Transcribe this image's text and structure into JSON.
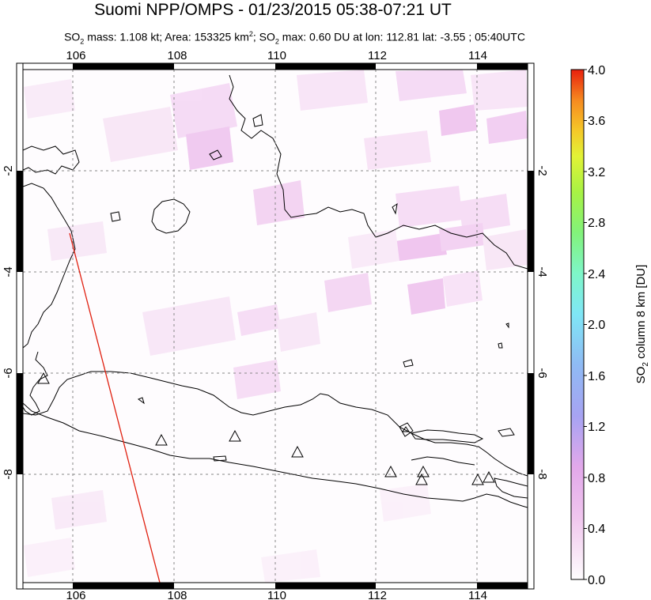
{
  "title": "Suomi NPP/OMPS - 01/23/2015 05:38-07:21 UT",
  "subtitle": {
    "p1": "SO",
    "s1": "2",
    "p2": " mass: 1.108 kt; Area: 153325 km",
    "s2": "2",
    "p3": "; SO",
    "s3": "2",
    "p4": " max: 0.60 DU at lon: 112.81 lat: -3.55 ; 05:40UTC"
  },
  "map": {
    "lon_ticks": [
      "106",
      "108",
      "110",
      "112",
      "114"
    ],
    "lat_ticks_left": [
      "-2",
      "-4",
      "-6",
      "-8"
    ],
    "lat_ticks_right": [
      "-2",
      "-4",
      "-6",
      "-8"
    ],
    "lon_range": [
      105,
      115
    ],
    "lat_range": [
      -10,
      0
    ],
    "volcano_marker_count": 10
  },
  "colorbar": {
    "label_main": "SO",
    "label_sub": "2",
    "label_rest": " column 8 km [DU]",
    "ticks": [
      "4.0",
      "3.6",
      "3.2",
      "2.8",
      "2.4",
      "2.0",
      "1.6",
      "1.2",
      "0.8",
      "0.4",
      "0.0"
    ],
    "range": [
      0,
      4
    ],
    "colors": [
      "#fefcfe",
      "#f2c8f0",
      "#e6a6ea",
      "#c9b4f3",
      "#9aa8f2",
      "#7fd4f6",
      "#7ef8ea",
      "#7af5a8",
      "#8df25c",
      "#bef23f",
      "#eef236",
      "#f5c626",
      "#f79020",
      "#f25a1a",
      "#e82a12"
    ]
  }
}
